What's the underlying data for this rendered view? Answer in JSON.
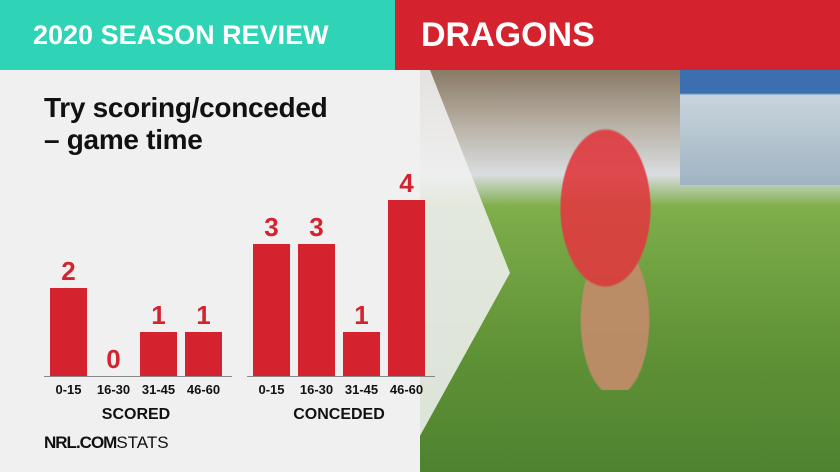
{
  "header": {
    "left": "2020 SEASON REVIEW",
    "right": "DRAGONS"
  },
  "title_lines": [
    "Try scoring/conceded",
    "– game time"
  ],
  "colors": {
    "teal": "#2fd4b6",
    "red": "#d4232e",
    "bar": "#d4232e",
    "panel": "#f0f0f0"
  },
  "logo": {
    "bold": "NRL.COM",
    "light": "STATS"
  },
  "chart_data": [
    {
      "type": "bar",
      "title": "",
      "xlabel": "SCORED",
      "categories": [
        "0-15",
        "16-30",
        "31-45",
        "46-60"
      ],
      "values": [
        2,
        0,
        1,
        1
      ],
      "ylim": [
        0,
        4
      ]
    },
    {
      "type": "bar",
      "title": "",
      "xlabel": "CONCEDED",
      "categories": [
        "0-15",
        "16-30",
        "31-45",
        "46-60"
      ],
      "values": [
        3,
        3,
        1,
        4
      ],
      "ylim": [
        0,
        4
      ]
    }
  ]
}
